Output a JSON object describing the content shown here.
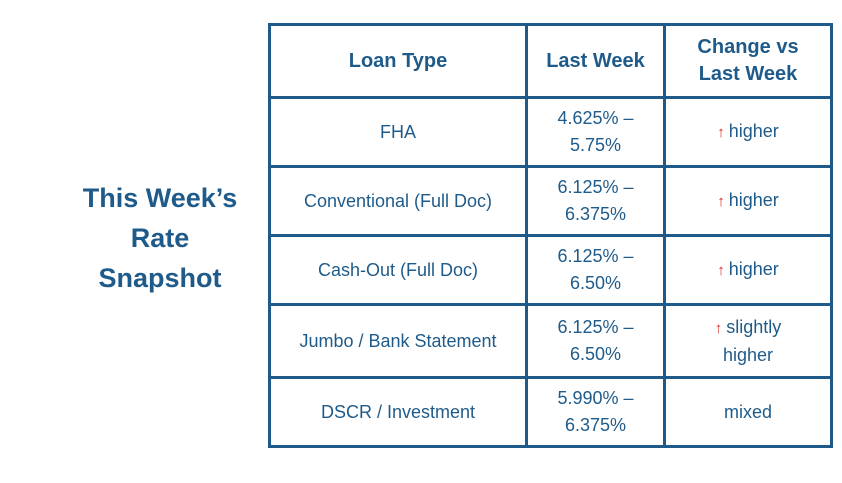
{
  "title": {
    "line1": "This Week’s",
    "line2": "Rate",
    "line3": "Snapshot"
  },
  "table": {
    "headers": {
      "loan_type": "Loan Type",
      "last_week": "Last Week",
      "change_line1": "Change vs",
      "change_line2": "Last Week"
    },
    "rows": [
      {
        "loan_type": "FHA",
        "rate_line1": "4.625% –",
        "rate_line2": "5.75%",
        "arrow": "↑",
        "change": "higher"
      },
      {
        "loan_type": "Conventional (Full Doc)",
        "rate_line1": "6.125% –",
        "rate_line2": "6.375%",
        "arrow": "↑",
        "change": "higher"
      },
      {
        "loan_type": "Cash-Out (Full Doc)",
        "rate_line1": "6.125% –",
        "rate_line2": "6.50%",
        "arrow": "↑",
        "change": "higher"
      },
      {
        "loan_type": "Jumbo / Bank Statement",
        "rate_line1": "6.125% –",
        "rate_line2": "6.50%",
        "arrow": "↑",
        "change_line1": "slightly",
        "change_line2": "higher"
      },
      {
        "loan_type": "DSCR / Investment",
        "rate_line1": "5.990% –",
        "rate_line2": "6.375%",
        "change": "mixed"
      }
    ]
  },
  "colors": {
    "text_primary": "#1f5b8a",
    "border": "#1f5b8a",
    "arrow_up": "#d62a2a",
    "background": "#ffffff"
  }
}
